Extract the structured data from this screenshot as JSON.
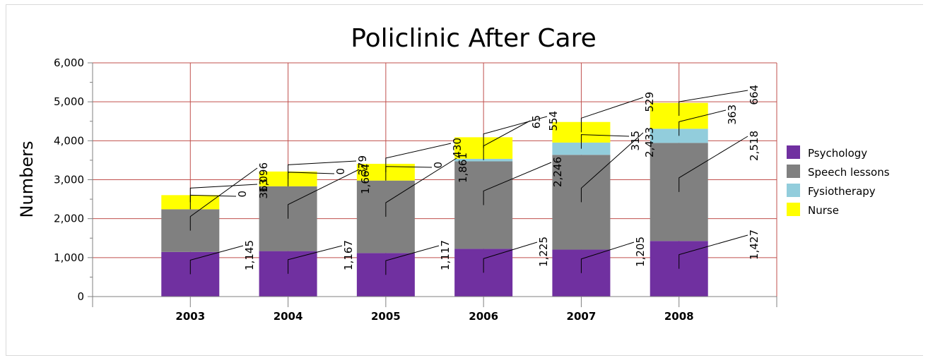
{
  "chart_data": {
    "type": "bar",
    "stacked": true,
    "title": "Policlinic After Care",
    "xlabel": "",
    "ylabel": "Numbers",
    "ylim": [
      0,
      6000
    ],
    "yticks": [
      0,
      1000,
      2000,
      3000,
      4000,
      5000,
      6000
    ],
    "ytick_labels": [
      "0",
      "1,000",
      "2,000",
      "3,000",
      "4,000",
      "5,000",
      "6,000"
    ],
    "categories": [
      "2003",
      "2004",
      "2005",
      "2006",
      "2007",
      "2008"
    ],
    "series": [
      {
        "name": "Psychology",
        "color": "#7030a0",
        "values": [
          1145,
          1167,
          1117,
          1225,
          1205,
          1427
        ],
        "labels": [
          "1,145",
          "1,167",
          "1,117",
          "1,225",
          "1,205",
          "1,427"
        ]
      },
      {
        "name": "Speech lessons",
        "color": "#808080",
        "values": [
          1096,
          1664,
          1861,
          2246,
          2433,
          2518
        ],
        "labels": [
          "1,096",
          "1,664",
          "1,861",
          "2,246",
          "2,433",
          "2,518"
        ]
      },
      {
        "name": "Fysiotherapy",
        "color": "#92cddc",
        "values": [
          0,
          0,
          0,
          65,
          315,
          363
        ],
        "labels": [
          "0",
          "0",
          "0",
          "65",
          "315",
          "363"
        ]
      },
      {
        "name": "Nurse",
        "color": "#ffff00",
        "values": [
          363,
          379,
          430,
          554,
          529,
          664
        ],
        "labels": [
          "363",
          "379",
          "430",
          "554",
          "529",
          "664"
        ]
      }
    ],
    "grid": true,
    "grid_color": "#c0504d",
    "legend": "right"
  }
}
